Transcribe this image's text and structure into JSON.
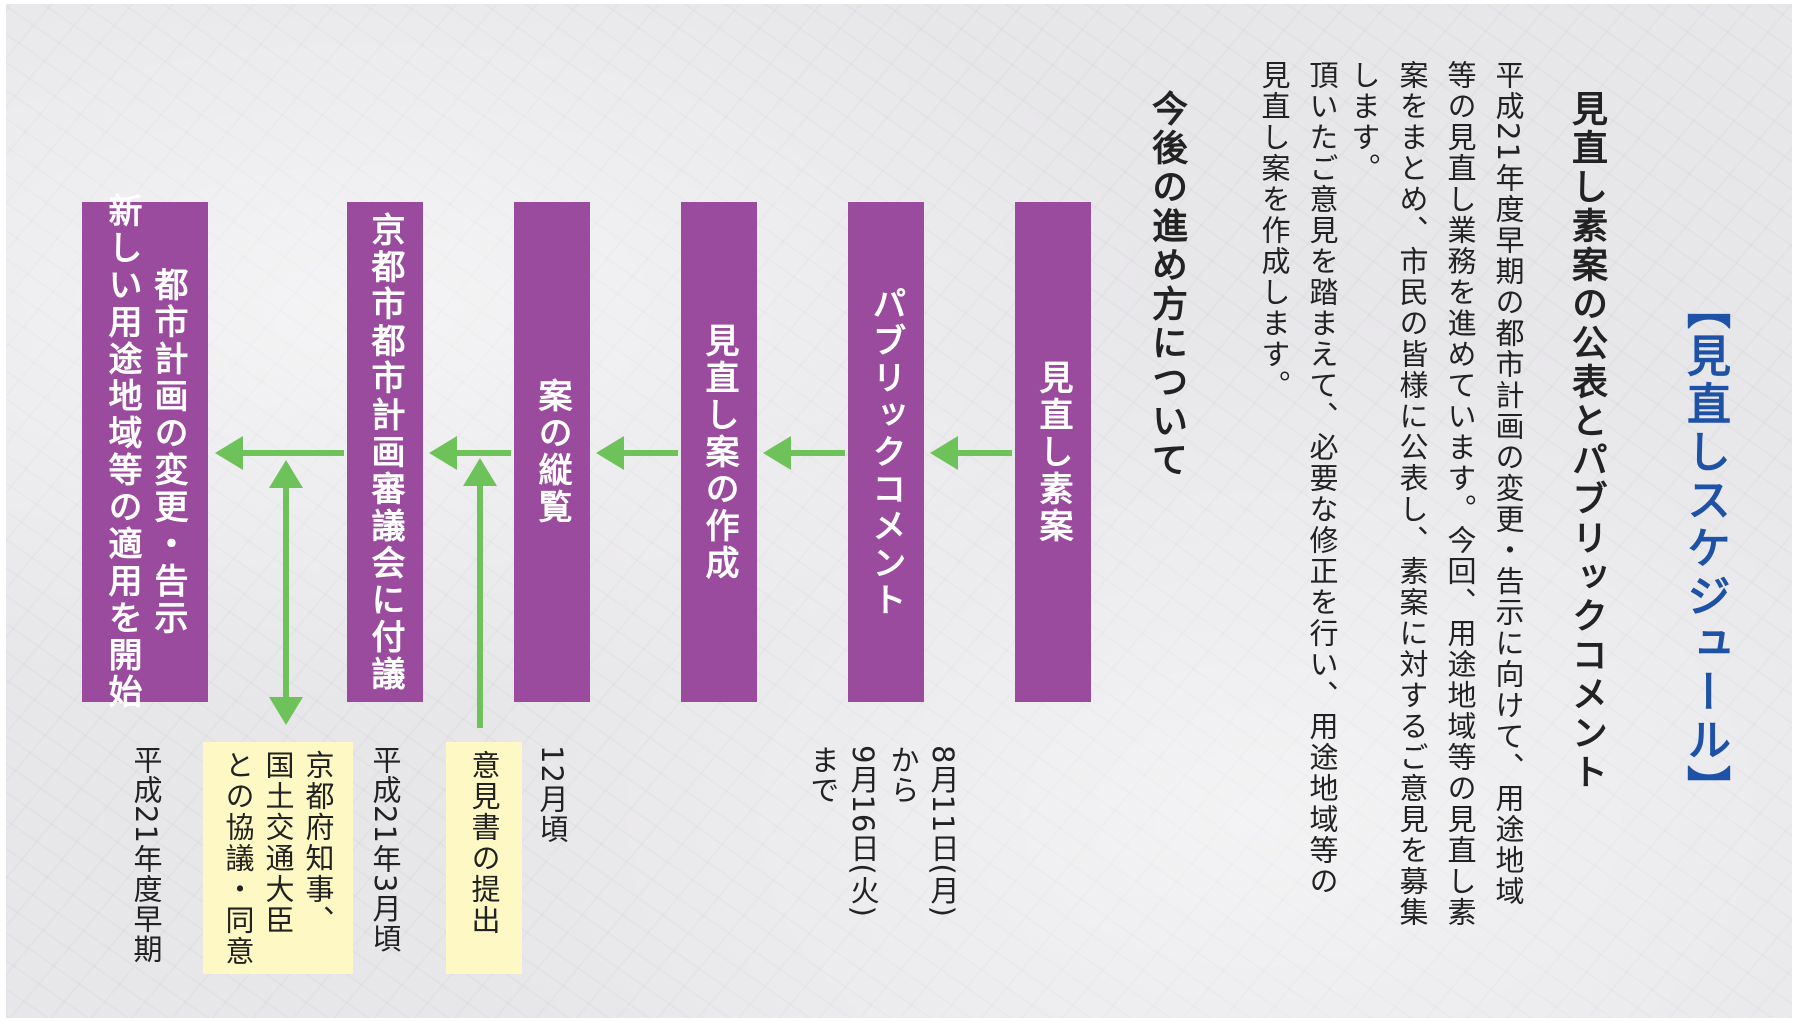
{
  "heading": "【見直しスケジュール】",
  "section_title": "見直し素案の公表とパブリックコメント",
  "intro_lines": [
    "平成21年度早期の都市計画の変更・告示に向けて、用途地域",
    "等の見直し業務を進めています。今回、用途地域等の見直し素",
    "案をまとめ、市民の皆様に公表し、素案に対するご意見を募集",
    "します。"
  ],
  "outro_lines": [
    "頂いたご意見を踏まえて、必要な修正を行い、用途地域等の",
    "見直し案を作成します。"
  ],
  "next_title": "今後の進め方について",
  "stages": [
    {
      "label_lines": [
        "見直し素案"
      ]
    },
    {
      "label_lines": [
        "パブリックコメント"
      ]
    },
    {
      "label_lines": [
        "見直し案の作成"
      ]
    },
    {
      "label_lines": [
        "案の縦覧"
      ]
    },
    {
      "label_lines": [
        "京都市都市計画審議会に付議"
      ]
    },
    {
      "label_lines": [
        "都市計画の変更・告示",
        "新しい用途地域等の適用を開始"
      ]
    }
  ],
  "notes": {
    "public_comment_period_lines": [
      "8月11日(月)",
      "から",
      "9月16日(火)",
      "まで"
    ],
    "inspection_time": "12月頃",
    "opinion_submission": "意見書の提出",
    "council_time": "平成21年3月頃",
    "consultation_lines": [
      "京都府知事、",
      "国土交通大臣",
      "との協議・同意"
    ],
    "final_time": "平成21年度早期"
  },
  "colors": {
    "stage_bg": "#9a4b9d",
    "arrow": "#6ec25a",
    "heading": "#1e52a6",
    "note_bg": "#fdf8c4"
  }
}
